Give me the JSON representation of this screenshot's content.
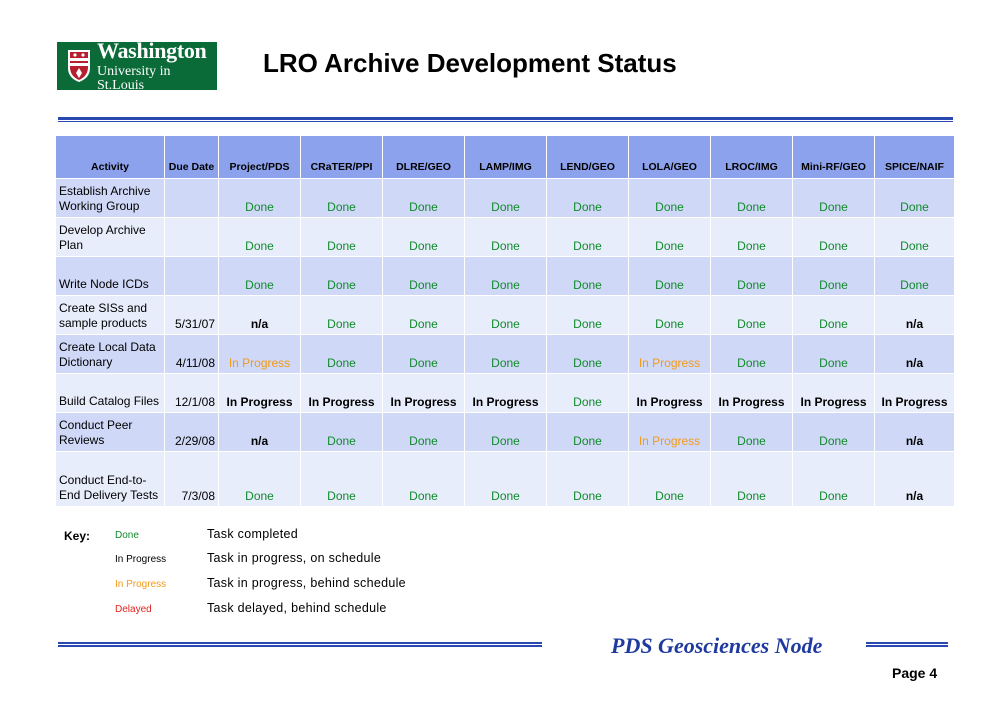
{
  "logo": {
    "line1": "Washington",
    "line2": "University in St.Louis",
    "color": "#0b6b38"
  },
  "title": "LRO Archive Development Status",
  "table": {
    "headers": [
      "Activity",
      "Due Date",
      "Project/PDS",
      "CRaTER/PPI",
      "DLRE/GEO",
      "LAMP/IMG",
      "LEND/GEO",
      "LOLA/GEO",
      "LROC/IMG",
      "Mini-RF/GEO",
      "SPICE/NAIF"
    ],
    "rows": [
      {
        "activity": "Establish Archive Working Group",
        "due": "",
        "cells": [
          {
            "text": "Done",
            "status": "done"
          },
          {
            "text": "Done",
            "status": "done"
          },
          {
            "text": "Done",
            "status": "done"
          },
          {
            "text": "Done",
            "status": "done"
          },
          {
            "text": "Done",
            "status": "done"
          },
          {
            "text": "Done",
            "status": "done"
          },
          {
            "text": "Done",
            "status": "done"
          },
          {
            "text": "Done",
            "status": "done"
          },
          {
            "text": "Done",
            "status": "done"
          }
        ]
      },
      {
        "activity": "Develop Archive Plan",
        "due": "",
        "cells": [
          {
            "text": "Done",
            "status": "done"
          },
          {
            "text": "Done",
            "status": "done"
          },
          {
            "text": "Done",
            "status": "done"
          },
          {
            "text": "Done",
            "status": "done"
          },
          {
            "text": "Done",
            "status": "done"
          },
          {
            "text": "Done",
            "status": "done"
          },
          {
            "text": "Done",
            "status": "done"
          },
          {
            "text": "Done",
            "status": "done"
          },
          {
            "text": "Done",
            "status": "done"
          }
        ]
      },
      {
        "activity": "Write Node ICDs",
        "due": "",
        "cells": [
          {
            "text": "Done",
            "status": "done"
          },
          {
            "text": "Done",
            "status": "done"
          },
          {
            "text": "Done",
            "status": "done"
          },
          {
            "text": "Done",
            "status": "done"
          },
          {
            "text": "Done",
            "status": "done"
          },
          {
            "text": "Done",
            "status": "done"
          },
          {
            "text": "Done",
            "status": "done"
          },
          {
            "text": "Done",
            "status": "done"
          },
          {
            "text": "Done",
            "status": "done"
          }
        ]
      },
      {
        "activity": "Create SISs and sample products",
        "due": "5/31/07",
        "cells": [
          {
            "text": "n/a",
            "status": "na"
          },
          {
            "text": "Done",
            "status": "done"
          },
          {
            "text": "Done",
            "status": "done"
          },
          {
            "text": "Done",
            "status": "done"
          },
          {
            "text": "Done",
            "status": "done"
          },
          {
            "text": "Done",
            "status": "done"
          },
          {
            "text": "Done",
            "status": "done"
          },
          {
            "text": "Done",
            "status": "done"
          },
          {
            "text": "n/a",
            "status": "na"
          }
        ]
      },
      {
        "activity": "Create Local Data Dictionary",
        "due": "4/11/08",
        "cells": [
          {
            "text": "In Progress",
            "status": "behind"
          },
          {
            "text": "Done",
            "status": "done"
          },
          {
            "text": "Done",
            "status": "done"
          },
          {
            "text": "Done",
            "status": "done"
          },
          {
            "text": "Done",
            "status": "done"
          },
          {
            "text": "In Progress",
            "status": "behind"
          },
          {
            "text": "Done",
            "status": "done"
          },
          {
            "text": "Done",
            "status": "done"
          },
          {
            "text": "n/a",
            "status": "na"
          }
        ]
      },
      {
        "activity": "Build Catalog Files",
        "due": "12/1/08",
        "cells": [
          {
            "text": "In Progress",
            "status": "inprog"
          },
          {
            "text": "In Progress",
            "status": "inprog"
          },
          {
            "text": "In Progress",
            "status": "inprog"
          },
          {
            "text": "In Progress",
            "status": "inprog"
          },
          {
            "text": "Done",
            "status": "done"
          },
          {
            "text": "In Progress",
            "status": "inprog"
          },
          {
            "text": "In Progress",
            "status": "inprog"
          },
          {
            "text": "In Progress",
            "status": "inprog"
          },
          {
            "text": "In Progress",
            "status": "inprog"
          }
        ]
      },
      {
        "activity": "Conduct Peer Reviews",
        "due": "2/29/08",
        "cells": [
          {
            "text": "n/a",
            "status": "na"
          },
          {
            "text": "Done",
            "status": "done"
          },
          {
            "text": "Done",
            "status": "done"
          },
          {
            "text": "Done",
            "status": "done"
          },
          {
            "text": "Done",
            "status": "done"
          },
          {
            "text": "In Progress",
            "status": "behind"
          },
          {
            "text": "Done",
            "status": "done"
          },
          {
            "text": "Done",
            "status": "done"
          },
          {
            "text": "n/a",
            "status": "na"
          }
        ]
      },
      {
        "activity": "Conduct End-to-End Delivery Tests",
        "due": "7/3/08",
        "cells": [
          {
            "text": "Done",
            "status": "done"
          },
          {
            "text": "Done",
            "status": "done"
          },
          {
            "text": "Done",
            "status": "done"
          },
          {
            "text": "Done",
            "status": "done"
          },
          {
            "text": "Done",
            "status": "done"
          },
          {
            "text": "Done",
            "status": "done"
          },
          {
            "text": "Done",
            "status": "done"
          },
          {
            "text": "Done",
            "status": "done"
          },
          {
            "text": "n/a",
            "status": "na"
          }
        ]
      }
    ]
  },
  "key": {
    "label": "Key:",
    "items": [
      {
        "swatch": "Done",
        "status": "done",
        "desc": "Task completed"
      },
      {
        "swatch": "In Progress",
        "status": "inprog",
        "desc": "Task in progress, on schedule"
      },
      {
        "swatch": "In Progress",
        "status": "behind",
        "desc": "Task in progress, behind schedule"
      },
      {
        "swatch": "Delayed",
        "status": "delayed",
        "desc": "Task delayed, behind schedule"
      }
    ]
  },
  "colors": {
    "done": "#118a2c",
    "inprog": "#000000",
    "behind": "#f29a1a",
    "delayed": "#e0231c",
    "na": "#000000",
    "header_bg": "#8da2ec",
    "row_odd": "#cfd8f6",
    "row_even": "#e8edfb",
    "rule": "#2a49b0"
  },
  "footer": {
    "text": "PDS Geosciences Node"
  },
  "page": {
    "label": "Page  4"
  }
}
